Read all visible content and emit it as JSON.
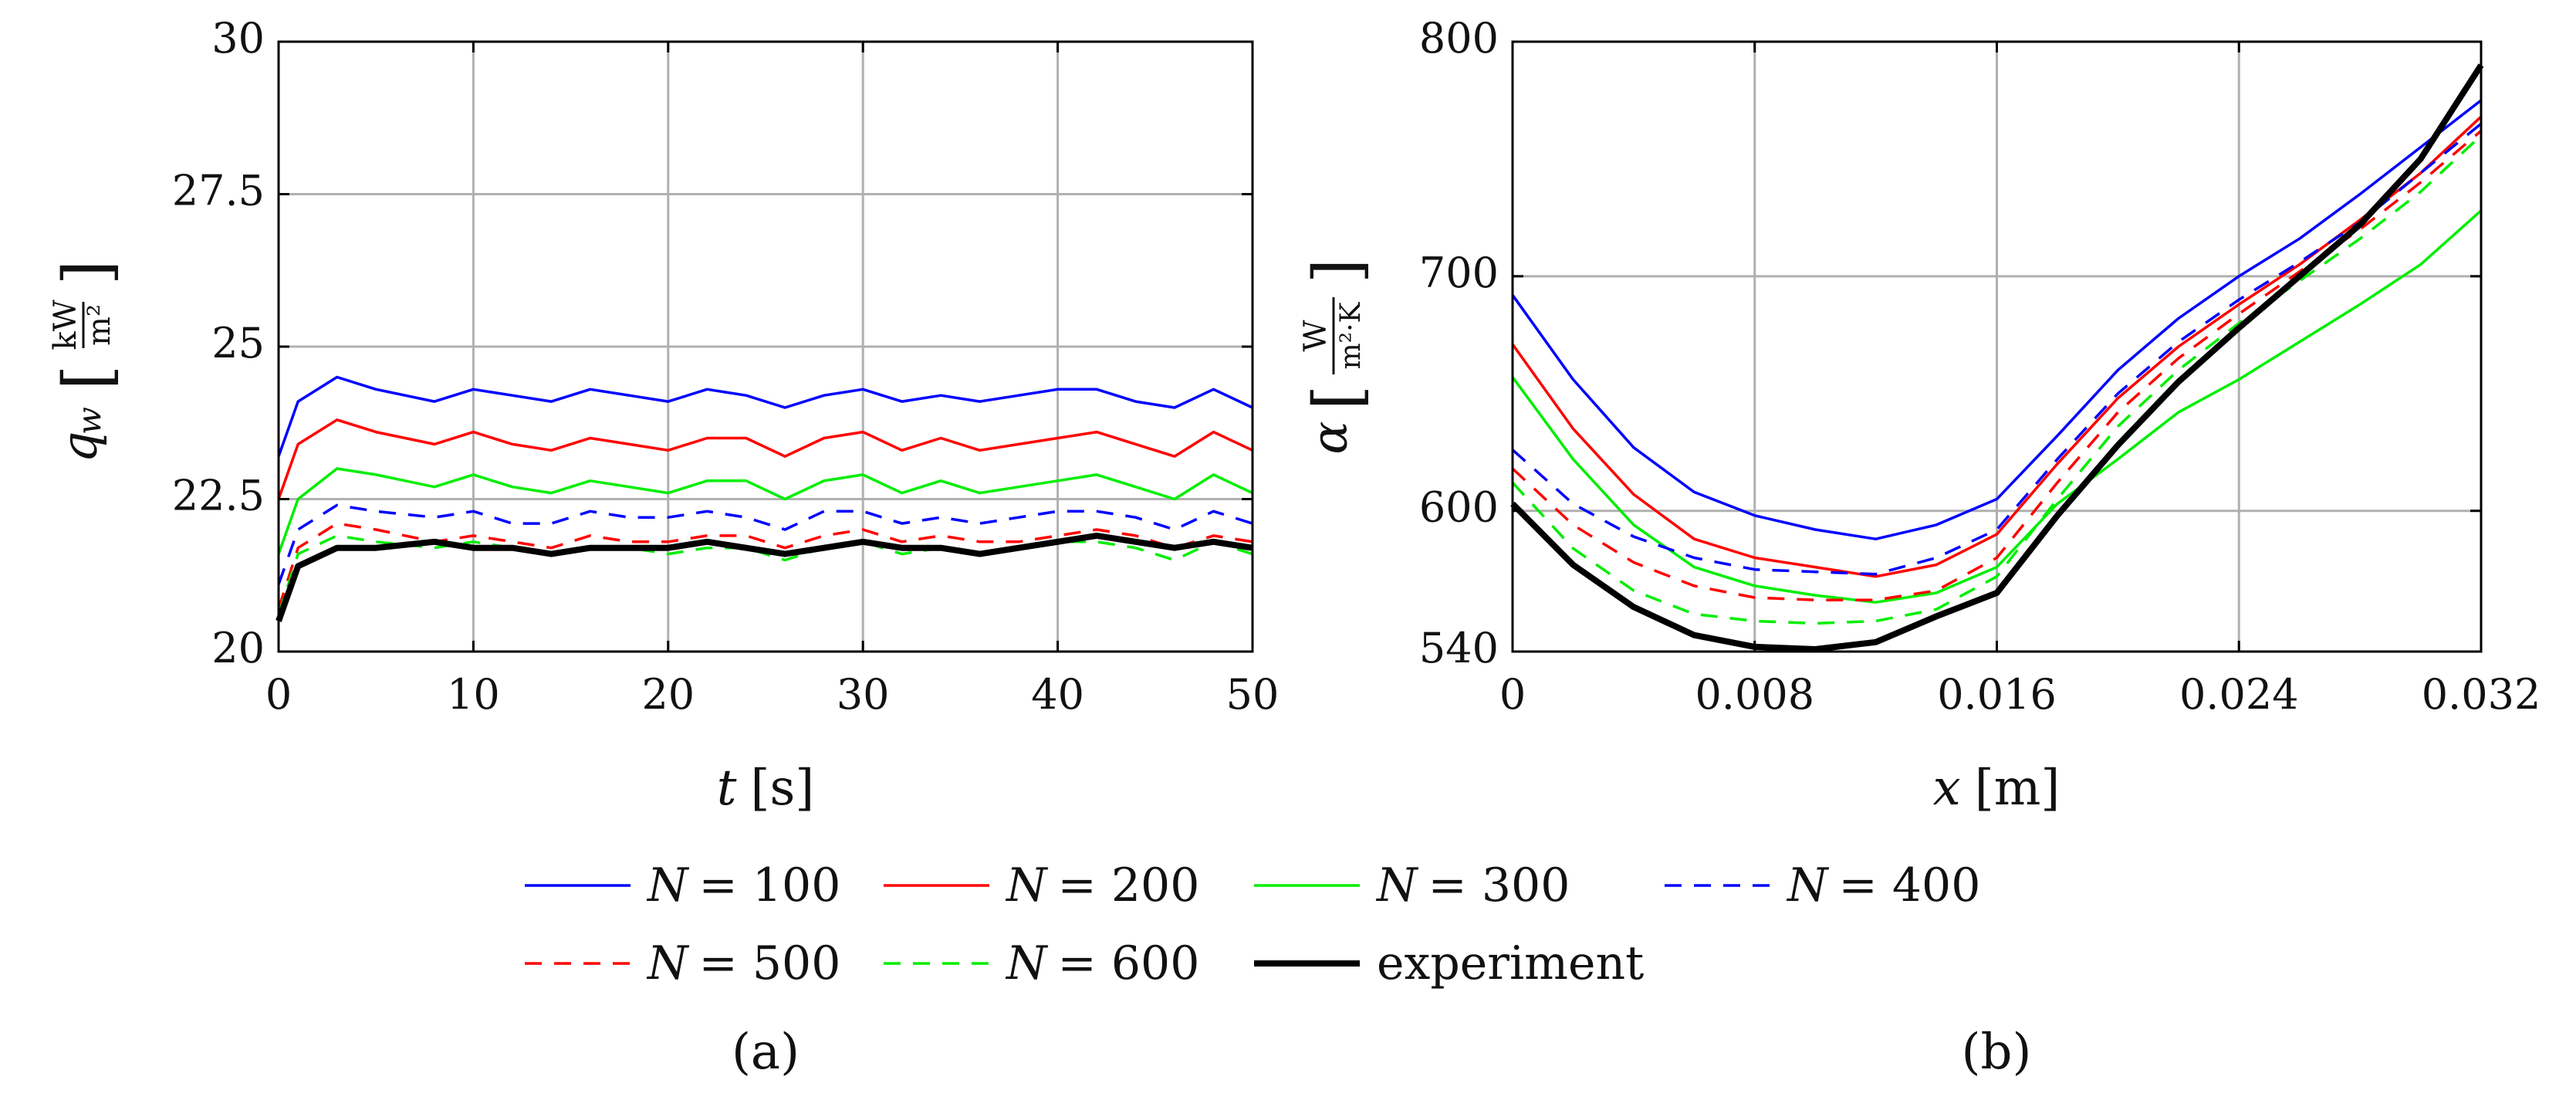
{
  "legend": [
    {
      "prefix": "N",
      "value": "= 100",
      "color": "#0000ff",
      "dash": "solid"
    },
    {
      "prefix": "N",
      "value": "= 200",
      "color": "#ff0000",
      "dash": "solid"
    },
    {
      "prefix": "N",
      "value": "= 300",
      "color": "#00ee00",
      "dash": "solid"
    },
    {
      "prefix": "N",
      "value": "= 400",
      "color": "#0000ff",
      "dash": "dashed"
    },
    {
      "prefix": "N",
      "value": "= 500",
      "color": "#ff0000",
      "dash": "dashed"
    },
    {
      "prefix": "N",
      "value": "= 600",
      "color": "#00ee00",
      "dash": "dashed"
    },
    {
      "prefix": "",
      "value": "experiment",
      "color": "#000000",
      "dash": "thick"
    }
  ],
  "chart_data": [
    {
      "type": "line",
      "panel_label": "(a)",
      "xlabel_var": "t",
      "xlabel_unit": "[s]",
      "ylabel_var": "q",
      "ylabel_sub": "w",
      "ylabel_unit_num": "kW",
      "ylabel_unit_den": "m²",
      "xlim": [
        0,
        50
      ],
      "ylim": [
        20,
        30
      ],
      "xticks": [
        0,
        10,
        20,
        30,
        40,
        50
      ],
      "xtick_labels": [
        "0",
        "10",
        "20",
        "30",
        "40",
        "50"
      ],
      "yticks": [
        20,
        22.5,
        25,
        27.5,
        30
      ],
      "ytick_labels": [
        "20",
        "22.5",
        "25",
        "27.5",
        "30"
      ],
      "grid": true,
      "x": [
        0,
        1,
        3,
        5,
        8,
        10,
        12,
        14,
        16,
        18,
        20,
        22,
        24,
        26,
        28,
        30,
        32,
        34,
        36,
        38,
        40,
        42,
        44,
        46,
        48,
        50
      ],
      "series": [
        {
          "name": "N = 100",
          "color": "#0000ff",
          "dash": "solid",
          "values": [
            23.2,
            24.1,
            24.5,
            24.3,
            24.1,
            24.3,
            24.2,
            24.1,
            24.3,
            24.2,
            24.1,
            24.3,
            24.2,
            24.0,
            24.2,
            24.3,
            24.1,
            24.2,
            24.1,
            24.2,
            24.3,
            24.3,
            24.1,
            24.0,
            24.3,
            24.0
          ]
        },
        {
          "name": "N = 200",
          "color": "#ff0000",
          "dash": "solid",
          "values": [
            22.5,
            23.4,
            23.8,
            23.6,
            23.4,
            23.6,
            23.4,
            23.3,
            23.5,
            23.4,
            23.3,
            23.5,
            23.5,
            23.2,
            23.5,
            23.6,
            23.3,
            23.5,
            23.3,
            23.4,
            23.5,
            23.6,
            23.4,
            23.2,
            23.6,
            23.3
          ]
        },
        {
          "name": "N = 300",
          "color": "#00ee00",
          "dash": "solid",
          "values": [
            21.6,
            22.5,
            23.0,
            22.9,
            22.7,
            22.9,
            22.7,
            22.6,
            22.8,
            22.7,
            22.6,
            22.8,
            22.8,
            22.5,
            22.8,
            22.9,
            22.6,
            22.8,
            22.6,
            22.7,
            22.8,
            22.9,
            22.7,
            22.5,
            22.9,
            22.6
          ]
        },
        {
          "name": "N = 400",
          "color": "#0000ff",
          "dash": "dashed",
          "values": [
            21.1,
            22.0,
            22.4,
            22.3,
            22.2,
            22.3,
            22.1,
            22.1,
            22.3,
            22.2,
            22.2,
            22.3,
            22.2,
            22.0,
            22.3,
            22.3,
            22.1,
            22.2,
            22.1,
            22.2,
            22.3,
            22.3,
            22.2,
            22.0,
            22.3,
            22.1
          ]
        },
        {
          "name": "N = 500",
          "color": "#ff0000",
          "dash": "dashed",
          "values": [
            20.7,
            21.7,
            22.1,
            22.0,
            21.8,
            21.9,
            21.8,
            21.7,
            21.9,
            21.8,
            21.8,
            21.9,
            21.9,
            21.7,
            21.9,
            22.0,
            21.8,
            21.9,
            21.8,
            21.8,
            21.9,
            22.0,
            21.9,
            21.7,
            21.9,
            21.8
          ]
        },
        {
          "name": "N = 600",
          "color": "#00ee00",
          "dash": "dashed",
          "values": [
            20.6,
            21.6,
            21.9,
            21.8,
            21.7,
            21.8,
            21.7,
            21.6,
            21.7,
            21.7,
            21.6,
            21.7,
            21.7,
            21.5,
            21.7,
            21.8,
            21.6,
            21.7,
            21.6,
            21.7,
            21.8,
            21.8,
            21.7,
            21.5,
            21.8,
            21.6
          ]
        },
        {
          "name": "experiment",
          "color": "#000000",
          "dash": "thick",
          "values": [
            20.5,
            21.4,
            21.7,
            21.7,
            21.8,
            21.7,
            21.7,
            21.6,
            21.7,
            21.7,
            21.7,
            21.8,
            21.7,
            21.6,
            21.7,
            21.8,
            21.7,
            21.7,
            21.6,
            21.7,
            21.8,
            21.9,
            21.8,
            21.7,
            21.8,
            21.7
          ]
        }
      ]
    },
    {
      "type": "line",
      "panel_label": "(b)",
      "xlabel_var": "x",
      "xlabel_unit": "[m]",
      "ylabel_var": "α",
      "ylabel_unit_num": "W",
      "ylabel_unit_den": "m²·K",
      "xlim": [
        0,
        0.032
      ],
      "ylim": [
        540,
        800
      ],
      "xticks": [
        0,
        0.008,
        0.016,
        0.024,
        0.032
      ],
      "xtick_labels": [
        "0",
        "0.008",
        "0.016",
        "0.024",
        "0.032"
      ],
      "yticks": [
        540,
        600,
        700,
        800
      ],
      "ytick_labels": [
        "540",
        "600",
        "700",
        "800"
      ],
      "grid": true,
      "x": [
        0,
        0.002,
        0.004,
        0.006,
        0.008,
        0.01,
        0.012,
        0.014,
        0.016,
        0.018,
        0.02,
        0.022,
        0.024,
        0.026,
        0.028,
        0.03,
        0.032
      ],
      "series": [
        {
          "name": "N = 100",
          "color": "#0000ff",
          "dash": "solid",
          "values": [
            692,
            656,
            627,
            608,
            598,
            592,
            588,
            594,
            605,
            632,
            660,
            682,
            700,
            716,
            735,
            755,
            775
          ]
        },
        {
          "name": "N = 200",
          "color": "#ff0000",
          "dash": "solid",
          "values": [
            671,
            635,
            607,
            588,
            580,
            576,
            572,
            577,
            590,
            620,
            648,
            670,
            688,
            705,
            724,
            744,
            768
          ]
        },
        {
          "name": "N = 300",
          "color": "#00ee00",
          "dash": "solid",
          "values": [
            657,
            622,
            594,
            576,
            568,
            564,
            561,
            565,
            576,
            603,
            622,
            642,
            656,
            672,
            688,
            705,
            728
          ]
        },
        {
          "name": "N = 400",
          "color": "#0000ff",
          "dash": "dashed",
          "values": [
            626,
            603,
            589,
            580,
            575,
            574,
            573,
            580,
            592,
            622,
            650,
            672,
            690,
            706,
            723,
            744,
            765
          ]
        },
        {
          "name": "N = 500",
          "color": "#ff0000",
          "dash": "dashed",
          "values": [
            618,
            594,
            578,
            568,
            563,
            562,
            562,
            566,
            580,
            612,
            642,
            665,
            684,
            702,
            720,
            740,
            762
          ]
        },
        {
          "name": "N = 600",
          "color": "#00ee00",
          "dash": "dashed",
          "values": [
            612,
            584,
            566,
            556,
            553,
            552,
            553,
            558,
            572,
            605,
            636,
            660,
            680,
            698,
            716,
            736,
            760
          ]
        },
        {
          "name": "experiment",
          "color": "#000000",
          "dash": "thick",
          "values": [
            603,
            577,
            559,
            547,
            542,
            541,
            544,
            555,
            565,
            598,
            628,
            655,
            678,
            700,
            722,
            750,
            790
          ]
        }
      ]
    }
  ]
}
